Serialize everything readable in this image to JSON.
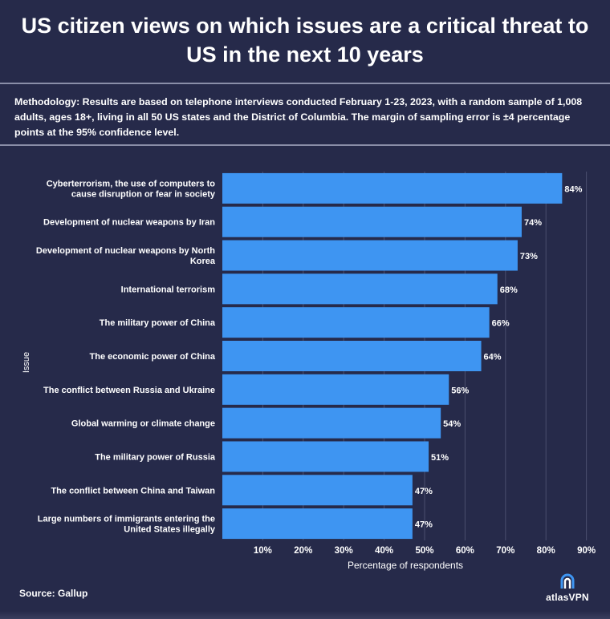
{
  "title": "US citizen views on which issues are a critical threat to US in the next 10 years",
  "methodology": {
    "label": "Methodology:",
    "text": " Results are based on telephone interviews conducted February 1-23, 2023, with a random sample of 1,008 adults, ages 18+, living in all 50 US states and the District of Columbia. The margin of sampling error is ±4 percentage points at the 95% confidence level."
  },
  "source": "Source: Gallup",
  "brand": {
    "name": "atlasVPN",
    "icon": "atlasvpn-logo-icon"
  },
  "colors": {
    "background": "#262a4a",
    "bar": "#3e95f2",
    "grid": "#4a4e6e"
  },
  "chart_data": {
    "type": "bar",
    "orientation": "horizontal",
    "xlabel": "Percentage of respondents",
    "ylabel": "Issue",
    "xlim": [
      0,
      92
    ],
    "xticks": [
      10,
      20,
      30,
      40,
      50,
      60,
      70,
      80,
      90
    ],
    "xtick_labels": [
      "10%",
      "20%",
      "30%",
      "40%",
      "50%",
      "60%",
      "70%",
      "80%",
      "90%"
    ],
    "grid": true,
    "categories": [
      [
        "Cyberterrorism, the use of computers to",
        "cause disruption or fear in society"
      ],
      [
        "Development of nuclear weapons by Iran"
      ],
      [
        "Development of nuclear weapons by North",
        "Korea"
      ],
      [
        "International terrorism"
      ],
      [
        "The military power of China"
      ],
      [
        "The economic power of China"
      ],
      [
        "The conflict between Russia and Ukraine"
      ],
      [
        "Global warming or climate change"
      ],
      [
        "The military power of Russia"
      ],
      [
        "The conflict between China and Taiwan"
      ],
      [
        "Large numbers of immigrants entering the",
        "United States illegally"
      ]
    ],
    "values": [
      84,
      74,
      73,
      68,
      66,
      64,
      56,
      54,
      51,
      47,
      47
    ],
    "value_labels": [
      "84%",
      "74%",
      "73%",
      "68%",
      "66%",
      "64%",
      "56%",
      "54%",
      "51%",
      "47%",
      "47%"
    ]
  }
}
